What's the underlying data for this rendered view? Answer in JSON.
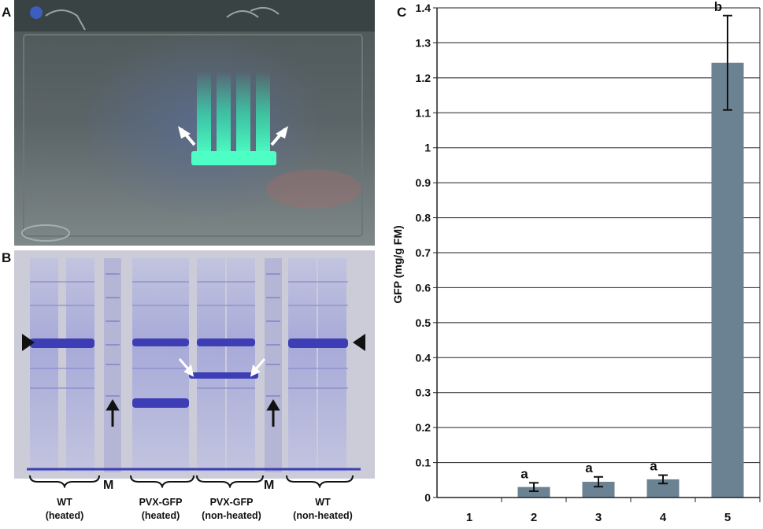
{
  "panels": {
    "a_letter": "A",
    "b_letter": "B",
    "c_letter": "C"
  },
  "gel": {
    "marker_label": "M",
    "lanes": [
      {
        "line1": "WT",
        "line2": "(heated)"
      },
      {
        "line1": "PVX-GFP",
        "line2": "(heated)"
      },
      {
        "line1": "PVX-GFP",
        "line2": "(non-heated)"
      },
      {
        "line1": "WT",
        "line2": "(non-heated)"
      }
    ]
  },
  "colors": {
    "bar": "#6b8293",
    "gel_background": "#ccccd9",
    "gel_band": "#3d3db5",
    "gfp_glow": "#33e6b0"
  },
  "chart_data": {
    "type": "bar",
    "categories": [
      "1",
      "2",
      "3",
      "4",
      "5"
    ],
    "values": [
      0,
      0.03,
      0.045,
      0.052,
      1.243
    ],
    "errors": [
      0,
      0.012,
      0.014,
      0.012,
      0.135
    ],
    "significance_letters": [
      "",
      "a",
      "a",
      "a",
      "b"
    ],
    "ylabel": "GFP (mg/g FM)",
    "xlabel": "",
    "ylim": [
      0,
      1.4
    ],
    "yticks": [
      "0",
      "0.1",
      "0.2",
      "0.3",
      "0.4",
      "0.5",
      "0.6",
      "0.7",
      "0.8",
      "0.9",
      "1",
      "1.1",
      "1.2",
      "1.3",
      "1.4"
    ],
    "grid": true,
    "bar_color": "#6b8293"
  }
}
